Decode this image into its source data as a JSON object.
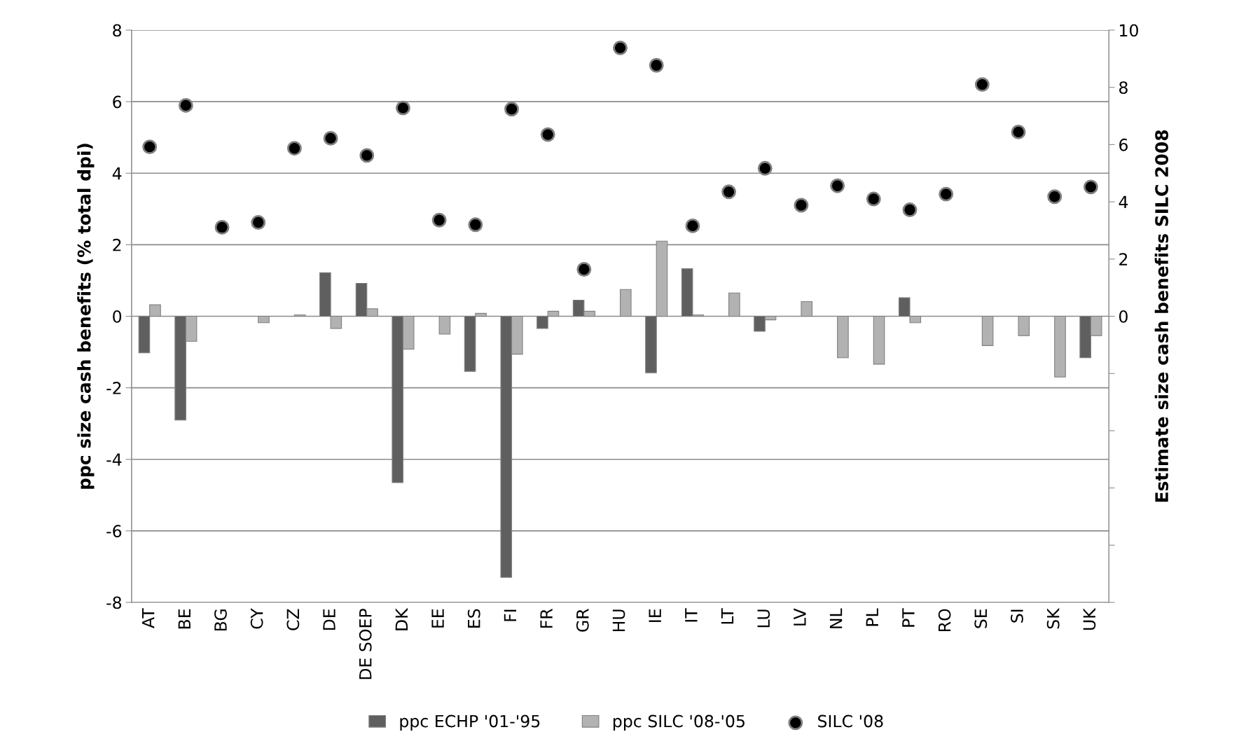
{
  "chart_data": {
    "type": "bar",
    "categories": [
      "AT",
      "BE",
      "BG",
      "CY",
      "CZ",
      "DE",
      "DE SOEP",
      "DK",
      "EE",
      "ES",
      "FI",
      "FR",
      "GR",
      "HU",
      "IE",
      "IT",
      "LT",
      "LU",
      "LV",
      "NL",
      "PL",
      "PT",
      "RO",
      "SE",
      "SI",
      "SK",
      "UK"
    ],
    "series": [
      {
        "name": "ppc ECHP '01-'95",
        "color": "#5f5f5f",
        "values": [
          -1.02,
          -2.9,
          null,
          null,
          null,
          1.22,
          0.92,
          -4.65,
          null,
          -1.54,
          -7.3,
          -0.34,
          0.45,
          null,
          -1.58,
          1.33,
          null,
          -0.42,
          null,
          null,
          null,
          0.52,
          null,
          null,
          null,
          null,
          -1.16
        ]
      },
      {
        "name": "ppc SILC '08-'05",
        "color": "#b2b2b2",
        "values": [
          0.32,
          -0.7,
          null,
          -0.18,
          0.04,
          -0.34,
          0.21,
          -0.92,
          -0.5,
          0.08,
          -1.06,
          0.14,
          0.14,
          0.75,
          2.1,
          0.04,
          0.65,
          -0.1,
          0.41,
          -1.16,
          -1.34,
          -0.18,
          null,
          -0.82,
          -0.54,
          -1.7,
          -0.54
        ]
      },
      {
        "name": "SILC '08",
        "type": "scatter",
        "axis": "y2",
        "color": "#000000",
        "marker": "circle",
        "values": [
          5.92,
          7.37,
          3.11,
          3.28,
          5.87,
          6.22,
          5.62,
          7.28,
          3.36,
          3.2,
          7.24,
          6.35,
          1.64,
          9.38,
          8.77,
          3.16,
          4.35,
          5.17,
          3.88,
          4.56,
          4.1,
          3.72,
          4.27,
          8.1,
          6.44,
          4.18,
          4.52
        ]
      }
    ],
    "ylabel": "ppc size cash benefits (% total dpi)",
    "y2label": "Estimate size cash benefits SILC 2008",
    "ylim": [
      -8,
      8
    ],
    "yticks": [
      -8,
      -6,
      -4,
      -2,
      0,
      2,
      4,
      6,
      8
    ],
    "y2lim": [
      -10,
      10
    ],
    "y2ticks": [
      {
        "value": -10,
        "label": null
      },
      {
        "value": -8,
        "label": null
      },
      {
        "value": -6,
        "label": null
      },
      {
        "value": -4,
        "label": null
      },
      {
        "value": -2,
        "label": null
      },
      0,
      2,
      4,
      6,
      8,
      10
    ],
    "grid": "y",
    "legend": "bottom"
  }
}
